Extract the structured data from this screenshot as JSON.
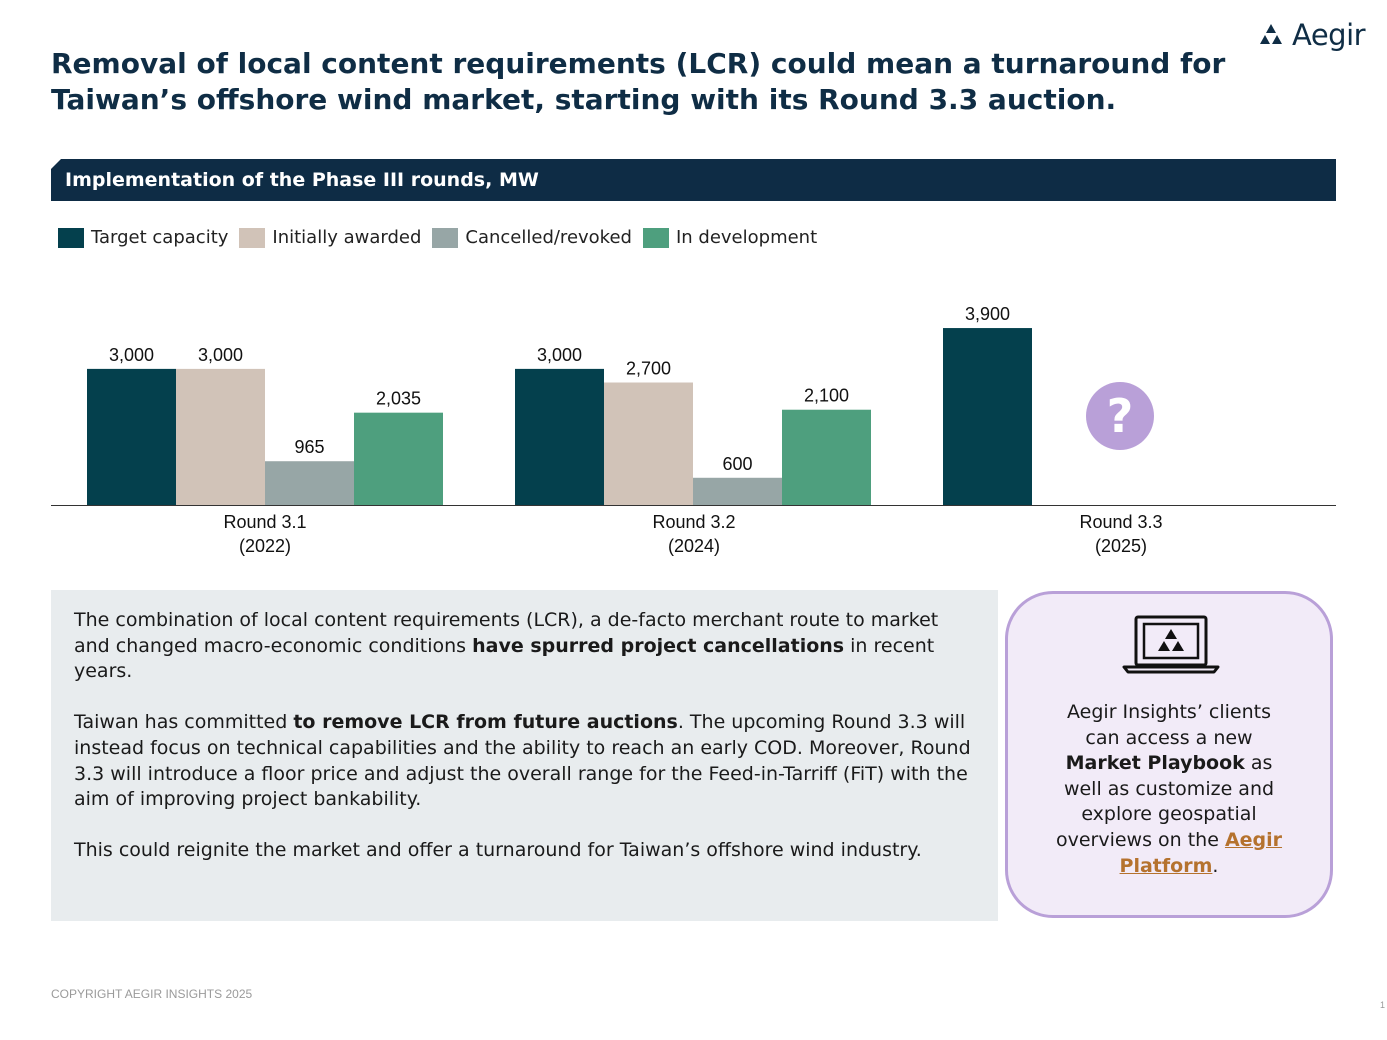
{
  "header": {
    "brand": "Aegir",
    "title_line1": "Removal of local content requirements (LCR) could mean a turnaround for",
    "title_line2": "Taiwan’s offshore wind market, starting with its Round 3.3 auction."
  },
  "chart_banner": "Implementation of the Phase III rounds, MW",
  "chart_data": {
    "type": "bar",
    "title": "Implementation of the Phase III rounds, MW",
    "ylabel": "MW",
    "ylim": [
      0,
      4000
    ],
    "categories": [
      {
        "line1": "Round 3.1",
        "line2": "(2022)"
      },
      {
        "line1": "Round 3.2",
        "line2": "(2024)"
      },
      {
        "line1": "Round 3.3",
        "line2": "(2025)"
      }
    ],
    "series": [
      {
        "name": "Target capacity",
        "color": "#04404d",
        "values": [
          3000,
          3000,
          3900
        ],
        "labels": [
          "3,000",
          "3,000",
          "3,900"
        ]
      },
      {
        "name": "Initially awarded",
        "color": "#d1c3b8",
        "values": [
          3000,
          2700,
          null
        ],
        "labels": [
          "3,000",
          "2,700",
          ""
        ]
      },
      {
        "name": "Cancelled/revoked",
        "color": "#97a6a6",
        "values": [
          965,
          600,
          null
        ],
        "labels": [
          "965",
          "600",
          ""
        ]
      },
      {
        "name": "In development",
        "color": "#4e9f7e",
        "values": [
          2035,
          2100,
          null
        ],
        "labels": [
          "2,035",
          "2,100",
          ""
        ]
      }
    ],
    "unknown_marker": {
      "category_index": 2,
      "symbol": "?",
      "color": "#b9a0d8"
    }
  },
  "body": {
    "p1_a": "The combination of local content requirements (LCR), a de-facto merchant route to market and changed macro-economic conditions ",
    "p1_b": "have spurred project cancellations",
    "p1_c": " in recent years.",
    "p2_a": "Taiwan has committed ",
    "p2_b": "to remove LCR from future auctions",
    "p2_c": ". The upcoming Round 3.3 will instead focus on technical capabilities and the ability to reach an early COD. Moreover, Round 3.3 will introduce a floor price and adjust the overall range for the Feed-in-Tarriff (FiT) with the aim of improving project bankability.",
    "p3": "This could reignite the market and offer a turnaround for Taiwan’s offshore wind industry."
  },
  "callout": {
    "text_a": "Aegir Insights’ clients can access a new ",
    "text_b": "Market Playbook",
    "text_c": " as well as customize and explore geospatial overviews on the ",
    "link": "Aegir Platform",
    "text_d": "."
  },
  "footer": {
    "copyright": "COPYRIGHT AEGIR INSIGHTS 2025",
    "page": "1"
  }
}
